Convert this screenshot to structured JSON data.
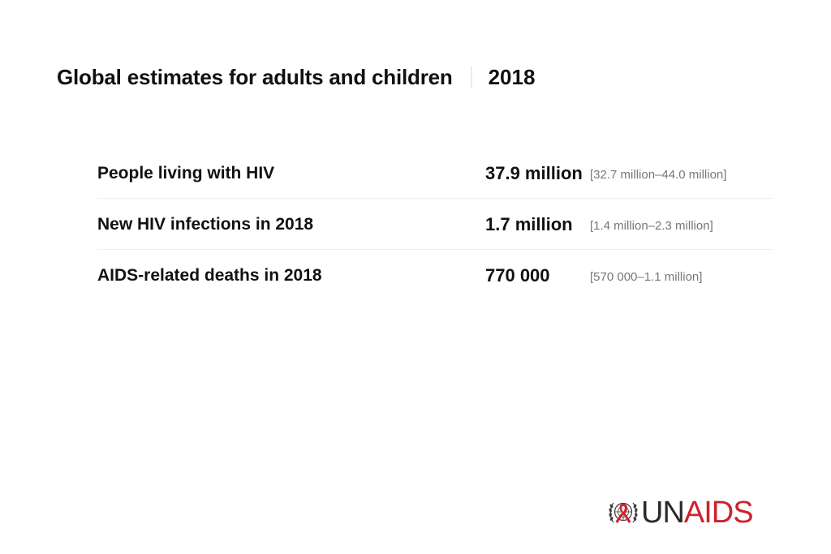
{
  "header": {
    "title": "Global estimates for adults and children",
    "year": "2018"
  },
  "stats": [
    {
      "label": "People living with HIV",
      "value": "37.9 million",
      "range": "[32.7 million–44.0 million]"
    },
    {
      "label": "New HIV infections in 2018",
      "value": "1.7 million",
      "range": "[1.4 million–2.3 million]"
    },
    {
      "label": "AIDS-related deaths in 2018",
      "value": "770 000",
      "range": "[570 000–1.1 million]"
    }
  ],
  "logo": {
    "un": "UN",
    "aids": "AIDS",
    "icon": "un-emblem-red-ribbon-icon",
    "brand_red": "#d0202e",
    "brand_dark": "#2b2b2b"
  }
}
